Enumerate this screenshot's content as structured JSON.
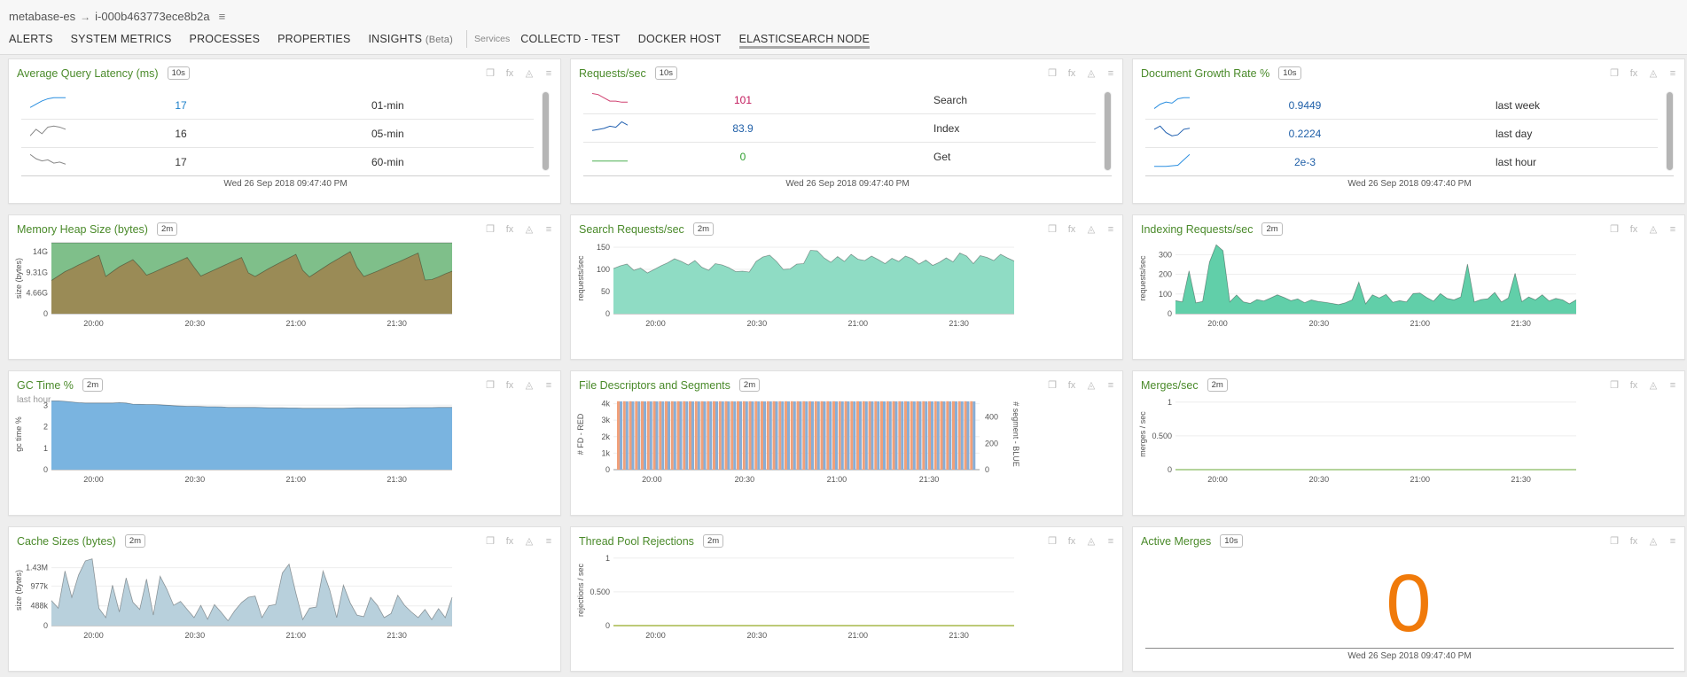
{
  "breadcrumb": {
    "root": "metabase-es",
    "instance": "i-000b463773ece8b2a"
  },
  "tabs": [
    "ALERTS",
    "SYSTEM METRICS",
    "PROCESSES",
    "PROPERTIES",
    "INSIGHTS"
  ],
  "insights_beta": "(Beta)",
  "services_label": "Services",
  "service_tabs": [
    "COLLECTD - TEST",
    "DOCKER HOST",
    "ELASTICSEARCH NODE"
  ],
  "icons": {
    "copy": "copy-icon",
    "fx": "fx-icon",
    "alert": "bell-icon",
    "menu": "menu-icon"
  },
  "panels": {
    "latency": {
      "title": "Average Query Latency (ms)",
      "badge": "10s",
      "rows": [
        {
          "value": "17",
          "label": "01-min",
          "value_color": "#1b7fc9"
        },
        {
          "value": "16",
          "label": "05-min",
          "value_color": "#333333"
        },
        {
          "value": "17",
          "label": "60-min",
          "value_color": "#333333"
        }
      ],
      "timestamp": "Wed 26 Sep 2018 09:47:40 PM"
    },
    "requests": {
      "title": "Requests/sec",
      "badge": "10s",
      "rows": [
        {
          "value": "101",
          "label": "Search",
          "value_color": "#c2185b"
        },
        {
          "value": "83.9",
          "label": "Index",
          "value_color": "#1f5fa8"
        },
        {
          "value": "0",
          "label": "Get",
          "value_color": "#2e9e2e"
        }
      ],
      "timestamp": "Wed 26 Sep 2018 09:47:40 PM"
    },
    "docgrowth": {
      "title": "Document Growth Rate %",
      "badge": "10s",
      "rows": [
        {
          "value": "0.9449",
          "label": "last week",
          "value_color": "#1f5fa8"
        },
        {
          "value": "0.2224",
          "label": "last day",
          "value_color": "#1f5fa8"
        },
        {
          "value": "2e-3",
          "label": "last hour",
          "value_color": "#1f5fa8"
        }
      ],
      "timestamp": "Wed 26 Sep 2018 09:47:40 PM"
    },
    "heap": {
      "title": "Memory Heap Size (bytes)",
      "badge": "2m"
    },
    "search": {
      "title": "Search Requests/sec",
      "badge": "2m"
    },
    "indexing": {
      "title": "Indexing Requests/sec",
      "badge": "2m"
    },
    "gc": {
      "title": "GC Time %",
      "badge": "2m",
      "subtitle": "last hour"
    },
    "fd": {
      "title": "File Descriptors and Segments",
      "badge": "2m"
    },
    "merges": {
      "title": "Merges/sec",
      "badge": "2m"
    },
    "cache": {
      "title": "Cache Sizes (bytes)",
      "badge": "2m"
    },
    "threadpool": {
      "title": "Thread Pool Rejections",
      "badge": "2m"
    },
    "activemerges": {
      "title": "Active Merges",
      "badge": "10s",
      "value": "0",
      "timestamp": "Wed 26 Sep 2018 09:47:40 PM"
    }
  },
  "chart_data": [
    {
      "id": "heap",
      "type": "area",
      "ylabel": "size (bytes)",
      "xticks": [
        "20:00",
        "20:30",
        "21:00",
        "21:30"
      ],
      "yticks": [
        "0",
        "4.66G",
        "9.31G",
        "14G"
      ],
      "yvals": [
        0,
        4.66,
        9.31,
        14
      ],
      "ylim": [
        0,
        16
      ],
      "series": [
        {
          "color": "#7fbf8a",
          "values": [
            16,
            16,
            16,
            16,
            16,
            16,
            16,
            16,
            16,
            16,
            16,
            16,
            16,
            16,
            16,
            16,
            16,
            16,
            16,
            16,
            16,
            16,
            16,
            16,
            16,
            16,
            16,
            16,
            16,
            16,
            16,
            16,
            16,
            16,
            16,
            16,
            16,
            16,
            16,
            16,
            16,
            16,
            16,
            16,
            16,
            16,
            16,
            16,
            16,
            16,
            16,
            16,
            16,
            16,
            16,
            16,
            16,
            16,
            16,
            16
          ]
        },
        {
          "color": "#9a8b56",
          "values": [
            7.5,
            8.5,
            9.5,
            10.2,
            11,
            11.7,
            12.5,
            13.2,
            8.4,
            9.5,
            10.6,
            11.4,
            12.2,
            10.6,
            8.7,
            9.3,
            10,
            10.7,
            11.3,
            12,
            12.7,
            10.5,
            8.5,
            9.2,
            9.9,
            10.6,
            11.3,
            12,
            12.7,
            9.2,
            8.4,
            9.3,
            10.2,
            11,
            11.8,
            12.6,
            13.4,
            9.8,
            8.3,
            9.3,
            10.3,
            11.3,
            12.2,
            13.1,
            14,
            10.5,
            8.4,
            9,
            9.6,
            10.3,
            11,
            11.6,
            12.3,
            13,
            13.7,
            7.6,
            7.7,
            8.3,
            9,
            9.6
          ]
        }
      ]
    },
    {
      "id": "search",
      "type": "area",
      "ylabel": "requests/sec",
      "xticks": [
        "20:00",
        "20:30",
        "21:00",
        "21:30"
      ],
      "yticks": [
        "0",
        "50",
        "100",
        "150"
      ],
      "yvals": [
        0,
        50,
        100,
        150
      ],
      "ylim": [
        0,
        160
      ],
      "series": [
        {
          "color": "#8fdcc4",
          "values": [
            102,
            108,
            112,
            98,
            103,
            92,
            100,
            108,
            115,
            124,
            118,
            110,
            120,
            105,
            98,
            113,
            110,
            104,
            95,
            96,
            94,
            118,
            128,
            132,
            118,
            100,
            101,
            112,
            113,
            143,
            142,
            126,
            116,
            129,
            118,
            134,
            123,
            120,
            130,
            122,
            113,
            125,
            118,
            130,
            124,
            112,
            121,
            109,
            116,
            126,
            117,
            137,
            130,
            113,
            131,
            127,
            120,
            134,
            126,
            119
          ]
        }
      ]
    },
    {
      "id": "indexing",
      "type": "area",
      "ylabel": "requests/sec",
      "xticks": [
        "20:00",
        "20:30",
        "21:00",
        "21:30"
      ],
      "yticks": [
        "0",
        "100",
        "200",
        "300"
      ],
      "yvals": [
        0,
        100,
        200,
        300
      ],
      "ylim": [
        0,
        360
      ],
      "series": [
        {
          "color": "#61cfa9",
          "values": [
            66,
            60,
            218,
            55,
            62,
            262,
            350,
            320,
            60,
            95,
            60,
            52,
            72,
            65,
            80,
            96,
            82,
            66,
            75,
            56,
            70,
            62,
            58,
            52,
            46,
            55,
            70,
            160,
            50,
            96,
            80,
            98,
            58,
            66,
            60,
            102,
            105,
            82,
            64,
            102,
            78,
            70,
            85,
            252,
            60,
            72,
            76,
            108,
            60,
            80,
            205,
            61,
            85,
            70,
            96,
            65,
            78,
            70,
            50,
            70
          ]
        }
      ]
    },
    {
      "id": "gc",
      "type": "area",
      "ylabel": "gc time %",
      "xticks": [
        "20:00",
        "20:30",
        "21:00",
        "21:30"
      ],
      "yticks": [
        "0",
        "1",
        "2",
        "3"
      ],
      "yvals": [
        0,
        1,
        2,
        3
      ],
      "ylim": [
        0,
        3.3
      ],
      "series": [
        {
          "color": "#7ab4e0",
          "values": [
            3.2,
            3.2,
            3.18,
            3.15,
            3.12,
            3.1,
            3.1,
            3.1,
            3.1,
            3.1,
            3.12,
            3.1,
            3.05,
            3.04,
            3.03,
            3.03,
            3.02,
            3.0,
            2.98,
            2.96,
            2.95,
            2.95,
            2.94,
            2.93,
            2.93,
            2.92,
            2.9,
            2.9,
            2.9,
            2.9,
            2.9,
            2.89,
            2.88,
            2.88,
            2.88,
            2.87,
            2.87,
            2.86,
            2.86,
            2.86,
            2.86,
            2.86,
            2.86,
            2.86,
            2.87,
            2.88,
            2.88,
            2.88,
            2.88,
            2.88,
            2.88,
            2.88,
            2.88,
            2.89,
            2.89,
            2.89,
            2.89,
            2.9,
            2.9,
            2.9
          ]
        }
      ]
    },
    {
      "id": "fd",
      "type": "bar",
      "ylabel": "# FD - RED",
      "y2label": "# segment - BLUE",
      "xticks": [
        "20:00",
        "20:30",
        "21:00",
        "21:30"
      ],
      "yticks": [
        "0",
        "1k",
        "2k",
        "3k",
        "4k"
      ],
      "yvals": [
        0,
        1000,
        2000,
        3000,
        4000
      ],
      "ylim": [
        0,
        4300
      ],
      "y2ticks": [
        "0",
        "200",
        "400"
      ],
      "y2vals": [
        0,
        200,
        400
      ],
      "y2lim": [
        0,
        540
      ],
      "series": [
        {
          "name": "# FD - RED",
          "color": "#f0a07a",
          "count": 60,
          "value": 4150
        },
        {
          "name": "# segment - BLUE",
          "color": "#88aed6",
          "count": 60,
          "value": 520
        }
      ]
    },
    {
      "id": "merges",
      "type": "line",
      "ylabel": "merges / sec",
      "xticks": [
        "20:00",
        "20:30",
        "21:00",
        "21:30"
      ],
      "yticks": [
        "0",
        "0.500",
        "1"
      ],
      "yvals": [
        0,
        0.5,
        1
      ],
      "ylim": [
        0,
        1.05
      ],
      "series": [
        {
          "color": "#9cc57a",
          "values": [
            0,
            0,
            0,
            0,
            0,
            0,
            0,
            0,
            0,
            0
          ]
        }
      ]
    },
    {
      "id": "cache",
      "type": "area",
      "ylabel": "size (bytes)",
      "xticks": [
        "20:00",
        "20:30",
        "21:00",
        "21:30"
      ],
      "yticks": [
        "0",
        "488k",
        "977k",
        "1.43M"
      ],
      "yvals": [
        0,
        488,
        977,
        1430
      ],
      "ylim": [
        0,
        1750
      ],
      "series": [
        {
          "color": "#b8d0dc",
          "values": [
            620,
            430,
            1350,
            700,
            1250,
            1600,
            1650,
            430,
            200,
            1000,
            340,
            1180,
            580,
            400,
            1150,
            260,
            1220,
            900,
            500,
            600,
            400,
            200,
            500,
            160,
            520,
            330,
            120,
            370,
            570,
            700,
            730,
            200,
            490,
            520,
            1300,
            1520,
            800,
            150,
            430,
            460,
            1350,
            870,
            200,
            1000,
            560,
            260,
            220,
            700,
            500,
            200,
            300,
            750,
            500,
            340,
            200,
            400,
            150,
            420,
            200,
            700
          ]
        }
      ]
    },
    {
      "id": "threadpool",
      "type": "line",
      "ylabel": "rejections / sec",
      "xticks": [
        "20:00",
        "20:30",
        "21:00",
        "21:30"
      ],
      "yticks": [
        "0",
        "0.500",
        "1"
      ],
      "yvals": [
        0,
        0.5,
        1
      ],
      "ylim": [
        0,
        1.05
      ],
      "series": [
        {
          "color": "#a7b84a",
          "values": [
            0,
            0,
            0,
            0,
            0,
            0,
            0,
            0,
            0,
            0
          ]
        }
      ]
    }
  ],
  "sparklines": {
    "latency": [
      {
        "color": "#2b8fe0",
        "values": [
          3,
          6,
          9,
          11,
          12,
          12,
          12
        ]
      },
      {
        "color": "#888888",
        "values": [
          3,
          9,
          5,
          11,
          12,
          11,
          9
        ]
      },
      {
        "color": "#888888",
        "values": [
          12,
          8,
          6,
          7,
          4,
          5,
          3
        ]
      }
    ],
    "requests": [
      {
        "color": "#d04070",
        "values": [
          11,
          10,
          7,
          4,
          4,
          3,
          3
        ]
      },
      {
        "color": "#2060b0",
        "values": [
          3,
          4,
          5,
          7,
          6,
          11,
          8
        ]
      },
      {
        "color": "#4caf50",
        "values": [
          1,
          1,
          1,
          1,
          1,
          1,
          1
        ]
      }
    ],
    "docgrowth": [
      {
        "color": "#2b8fe0",
        "values": [
          2,
          6,
          8,
          7,
          11,
          12,
          12
        ]
      },
      {
        "color": "#2060b0",
        "values": [
          9,
          12,
          6,
          3,
          4,
          9,
          10
        ]
      },
      {
        "color": "#2b8fe0",
        "values": [
          1,
          1,
          1,
          1.5,
          2,
          7,
          12
        ]
      }
    ]
  }
}
